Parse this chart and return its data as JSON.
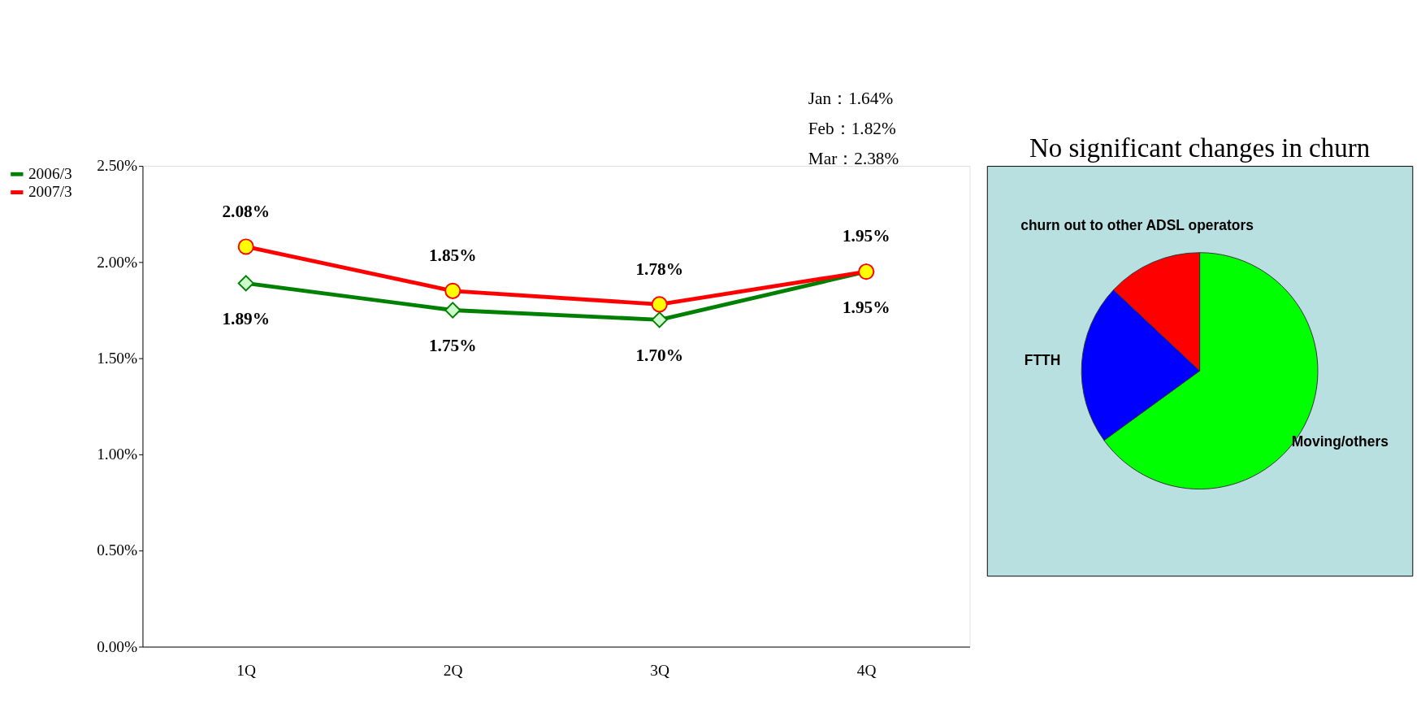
{
  "chart_data": [
    {
      "type": "line",
      "categories": [
        "1Q",
        "2Q",
        "3Q",
        "4Q"
      ],
      "ylim": [
        0,
        2.5
      ],
      "yticks": [
        {
          "value": 0,
          "label": "0.00%"
        },
        {
          "value": 0.5,
          "label": "0.50%"
        },
        {
          "value": 1,
          "label": "1.00%"
        },
        {
          "value": 1.5,
          "label": "1.50%"
        },
        {
          "value": 2,
          "label": "2.00%"
        },
        {
          "value": 2.5,
          "label": "2.50%"
        }
      ],
      "series": [
        {
          "name": "2006/3",
          "color": "#008000",
          "marker": "diamond",
          "values": [
            1.89,
            1.75,
            1.7,
            1.95
          ],
          "value_labels": [
            "1.89%",
            "1.75%",
            "1.70%",
            "1.95%"
          ]
        },
        {
          "name": "2007/3",
          "color": "#ff0000",
          "marker": "circle",
          "values": [
            2.08,
            1.85,
            1.78,
            1.95
          ],
          "value_labels": [
            "2.08%",
            "1.85%",
            "1.78%",
            "1.95%"
          ]
        }
      ],
      "annotations": [
        "Jan：1.64%",
        "Feb：1.82%",
        "Mar：2.38%"
      ],
      "grid": false,
      "legend": "left",
      "line_style": "solid"
    },
    {
      "type": "pie",
      "title": "No significant changes in churn",
      "categories": [
        "Moving/others",
        "FTTH",
        "churn out to other ADSL operators"
      ],
      "values": [
        65,
        22,
        13
      ],
      "colors": [
        "#00ff00",
        "#0000ff",
        "#ff0000"
      ],
      "legend": false
    }
  ]
}
